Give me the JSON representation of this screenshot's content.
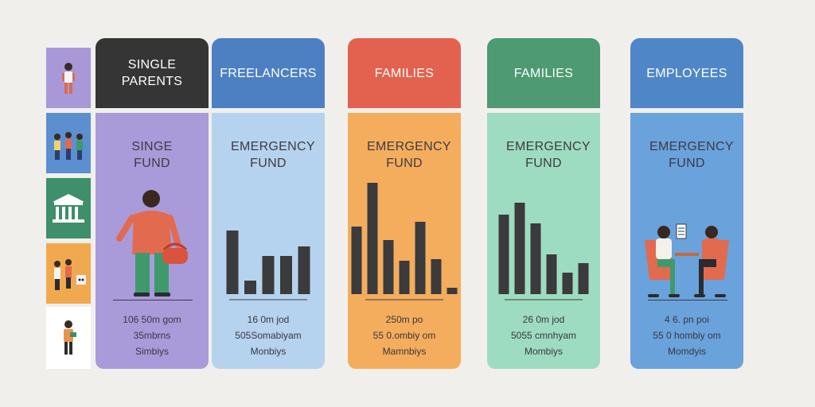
{
  "colors": {
    "background": "#f1efec",
    "bar": "#3b3a3d"
  },
  "sidebar": {
    "items": [
      {
        "name": "single-parent-icon",
        "color": "#a898d8"
      },
      {
        "name": "freelancers-icon",
        "color": "#5b8fd0"
      },
      {
        "name": "bank-building-icon",
        "color": "#3e8f6a"
      },
      {
        "name": "family-icon",
        "color": "#f1a950"
      },
      {
        "name": "employee-icon",
        "color": "#ffffff"
      }
    ]
  },
  "columns": [
    {
      "header": "SINGLE PARENTS",
      "header_color": "#353535",
      "header_text_color": "#ffffff",
      "body_color": "#a99bd9",
      "fund_title": "SINGE FUND",
      "illustration": "woman-with-handbag",
      "stats": [
        "106 50m gom",
        "35mbrns",
        "Simbiys"
      ]
    },
    {
      "header": "FREELANCERS",
      "header_color": "#4d80c3",
      "header_text_color": "#ffffff",
      "body_color": "#b5d3ee",
      "fund_title": "EMERGENCY FUND",
      "chart_values": [
        80,
        17,
        48,
        48,
        60
      ],
      "stats": [
        "16 0m jod",
        "505Somabiyam",
        "Monbiys"
      ]
    },
    {
      "header": "FAMILIES",
      "header_color": "#e2624f",
      "header_text_color": "#ffffff",
      "body_color": "#f4ad5c",
      "fund_title": "EMERGENCY FUND",
      "chart_values": [
        85,
        140,
        68,
        42,
        91,
        44,
        8
      ],
      "stats": [
        "250m po",
        "55 0.ombiy om",
        "Mamnbiys"
      ]
    },
    {
      "header": "FAMILIES",
      "header_color": "#4e9a72",
      "header_text_color": "#ffffff",
      "body_color": "#9ddcc0",
      "fund_title": "EMERGENCY FUND",
      "chart_values": [
        100,
        115,
        89,
        50,
        27,
        39
      ],
      "stats": [
        "26 0m jod",
        "5055 cmnhyam",
        "Mombiys"
      ]
    },
    {
      "header": "EMPLOYEES",
      "header_color": "#4f86c8",
      "header_text_color": "#ffffff",
      "body_color": "#6aa2dc",
      "fund_title": "EMERGENCY FUND",
      "illustration": "two-people-meeting",
      "stats": [
        "4 6. pn poi",
        "55 0 hombiy om",
        "Momdyis"
      ]
    }
  ]
}
